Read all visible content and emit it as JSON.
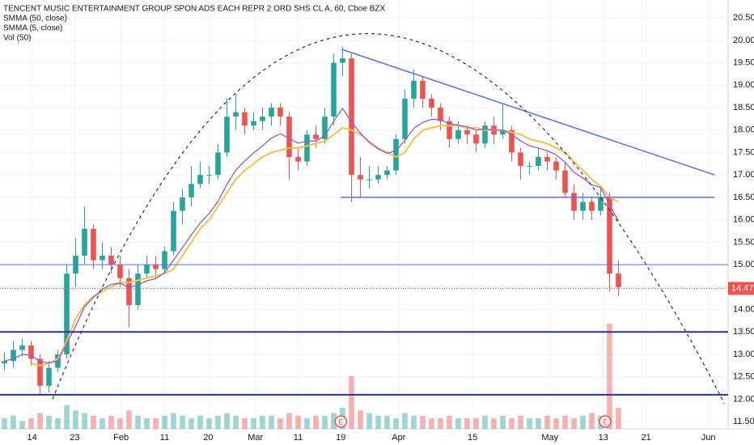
{
  "chart_data": {
    "type": "candlestick",
    "title": "TENCENT MUSIC ENTERTAINMENT GROUP SPON ADS EACH REPR 2 ORD SHS CL A, 60, Cboe BZX",
    "up_color": "#26a69a",
    "down_color": "#ef5350",
    "open": [
      12.8,
      12.85,
      13.1,
      13.2,
      12.9,
      12.3,
      12.7,
      13.0,
      14.8,
      15.2,
      15.8,
      15.1,
      15.2,
      15.0,
      14.7,
      14.1,
      14.8,
      15.0,
      14.9,
      15.3,
      16.2,
      16.5,
      16.8,
      17.0,
      17.0,
      17.5,
      18.3,
      18.4,
      18.1,
      18.2,
      18.3,
      18.5,
      18.3,
      17.4,
      17.3,
      17.9,
      17.8,
      18.3,
      19.5,
      19.6,
      17.0,
      16.9,
      16.9,
      17.0,
      17.1,
      17.8,
      18.7,
      19.1,
      18.7,
      18.5,
      18.2,
      17.8,
      18.0,
      17.9,
      17.7,
      18.1,
      17.9,
      18.0,
      17.5,
      17.2,
      17.2,
      17.4,
      17.3,
      17.1,
      16.6,
      16.2,
      16.4,
      16.2,
      16.5,
      14.8
    ],
    "high": [
      13.05,
      13.3,
      13.35,
      13.3,
      13.0,
      12.85,
      13.1,
      15.0,
      15.6,
      16.3,
      15.9,
      15.5,
      15.4,
      15.2,
      14.9,
      15.0,
      15.2,
      15.2,
      15.4,
      16.4,
      16.7,
      17.2,
      17.3,
      17.2,
      17.7,
      18.7,
      18.8,
      18.5,
      18.4,
      18.5,
      18.6,
      18.6,
      18.4,
      17.6,
      18.0,
      18.1,
      18.5,
      19.7,
      19.85,
      19.7,
      17.4,
      17.2,
      17.2,
      17.2,
      17.9,
      18.9,
      19.35,
      19.2,
      18.8,
      18.6,
      18.3,
      18.2,
      18.1,
      18.0,
      18.2,
      18.3,
      18.6,
      18.1,
      17.6,
      17.3,
      17.6,
      17.5,
      17.4,
      17.3,
      16.8,
      16.6,
      16.5,
      16.7,
      16.6,
      15.1
    ],
    "low": [
      12.65,
      12.7,
      12.95,
      12.75,
      12.1,
      12.15,
      12.6,
      12.9,
      14.5,
      15.0,
      14.9,
      14.9,
      14.8,
      14.5,
      13.6,
      14.0,
      14.7,
      14.7,
      14.8,
      15.2,
      15.9,
      16.3,
      16.7,
      16.8,
      16.9,
      17.4,
      18.0,
      17.9,
      18.0,
      18.0,
      18.1,
      18.1,
      16.9,
      17.1,
      17.2,
      17.6,
      17.7,
      18.1,
      19.2,
      16.4,
      16.5,
      16.7,
      16.8,
      16.9,
      17.0,
      17.7,
      18.5,
      18.5,
      18.3,
      18.0,
      17.6,
      17.7,
      17.7,
      17.5,
      17.6,
      17.7,
      17.8,
      17.3,
      16.9,
      17.0,
      17.1,
      17.1,
      16.9,
      16.5,
      16.0,
      16.0,
      16.0,
      16.1,
      14.4,
      14.3
    ],
    "close": [
      12.85,
      13.1,
      13.2,
      12.9,
      12.3,
      12.7,
      13.0,
      14.8,
      15.2,
      15.8,
      15.1,
      15.2,
      15.0,
      14.7,
      14.1,
      14.8,
      15.0,
      14.9,
      15.3,
      16.2,
      16.5,
      16.8,
      17.0,
      17.0,
      17.5,
      18.3,
      18.4,
      18.1,
      18.2,
      18.3,
      18.5,
      18.3,
      17.4,
      17.3,
      17.9,
      17.8,
      18.3,
      19.5,
      19.6,
      17.0,
      16.9,
      16.9,
      17.0,
      17.1,
      17.8,
      18.7,
      19.1,
      18.7,
      18.5,
      18.2,
      17.8,
      18.0,
      17.9,
      17.7,
      18.1,
      17.9,
      18.0,
      17.5,
      17.2,
      17.2,
      17.4,
      17.3,
      17.1,
      16.6,
      16.2,
      16.4,
      16.2,
      16.5,
      14.8,
      14.5
    ],
    "series": [
      {
        "name": "SMMA (50, close)",
        "color": "#f7c04a",
        "values": [
          null,
          null,
          null,
          12.8,
          12.75,
          12.8,
          12.9,
          13.3,
          13.8,
          14.1,
          14.3,
          14.4,
          14.5,
          14.6,
          14.6,
          14.65,
          14.7,
          14.75,
          14.8,
          14.9,
          15.2,
          15.5,
          15.8,
          16.0,
          16.3,
          16.6,
          16.9,
          17.1,
          17.25,
          17.4,
          17.5,
          17.55,
          17.6,
          17.6,
          17.65,
          17.7,
          17.75,
          17.9,
          18.05,
          18.0,
          17.9,
          17.75,
          17.6,
          17.5,
          17.4,
          17.5,
          17.8,
          18.0,
          18.05,
          18.1,
          18.1,
          18.1,
          18.05,
          18.05,
          18.0,
          18.0,
          18.0,
          17.95,
          17.9,
          17.8,
          17.75,
          17.7,
          17.6,
          17.5,
          17.3,
          17.1,
          16.9,
          16.75,
          16.5,
          16.4
        ]
      },
      {
        "name": "SMMA (5, close)",
        "color": "#8e5bd6",
        "values": [
          12.85,
          12.9,
          13.0,
          12.98,
          12.84,
          12.81,
          12.85,
          13.24,
          13.63,
          14.06,
          14.27,
          14.45,
          14.56,
          14.59,
          14.49,
          14.55,
          14.64,
          14.69,
          14.82,
          15.1,
          15.38,
          15.66,
          15.93,
          16.14,
          16.41,
          16.79,
          17.11,
          17.31,
          17.49,
          17.65,
          17.82,
          17.92,
          17.81,
          17.71,
          17.75,
          17.76,
          17.87,
          18.2,
          18.48,
          18.18,
          17.93,
          17.72,
          17.58,
          17.48,
          17.54,
          17.77,
          18.04,
          18.17,
          18.24,
          18.23,
          18.14,
          18.11,
          18.07,
          18.0,
          18.02,
          18.0,
          18.0,
          17.9,
          17.76,
          17.65,
          17.6,
          17.54,
          17.45,
          17.28,
          17.06,
          16.93,
          16.78,
          16.72,
          16.34,
          15.97
        ]
      }
    ],
    "volume": {
      "name": "Vol (50)",
      "vlim": [
        0,
        40
      ],
      "values": [
        4,
        5,
        3,
        4,
        6,
        5,
        4,
        9,
        7,
        6,
        5,
        4,
        5,
        4,
        7,
        5,
        4,
        4,
        5,
        6,
        5,
        4,
        5,
        4,
        5,
        6,
        5,
        4,
        4,
        5,
        5,
        4,
        6,
        5,
        4,
        5,
        5,
        6,
        8,
        20,
        7,
        6,
        5,
        5,
        4,
        6,
        5,
        5,
        4,
        4,
        5,
        4,
        4,
        4,
        5,
        4,
        5,
        4,
        5,
        4,
        4,
        5,
        4,
        5,
        4,
        5,
        6,
        5,
        40,
        8
      ]
    },
    "xlim": [
      -0.5,
      81.32
    ],
    "xticks": [
      {
        "value": 3.1,
        "label": "14"
      },
      {
        "value": 7.9,
        "label": "23"
      },
      {
        "value": 13.1,
        "label": "Feb"
      },
      {
        "value": 18.0,
        "label": "11"
      },
      {
        "value": 22.9,
        "label": "20"
      },
      {
        "value": 28.2,
        "label": "Mar"
      },
      {
        "value": 33.0,
        "label": "11"
      },
      {
        "value": 37.8,
        "label": "19"
      },
      {
        "value": 44.3,
        "label": "Apr"
      },
      {
        "value": 52.6,
        "label": "15"
      },
      {
        "value": 61.3,
        "label": "May"
      },
      {
        "value": 67.3,
        "label": "13"
      },
      {
        "value": 72.1,
        "label": "21"
      },
      {
        "value": 79.1,
        "label": "Jun"
      }
    ],
    "ylim": [
      11.34,
      20.9
    ],
    "yticks": [
      {
        "value": 11.5,
        "label": "11.50"
      },
      {
        "value": 12,
        "label": "12.00"
      },
      {
        "value": 12.5,
        "label": "12.50"
      },
      {
        "value": 13,
        "label": "13.00"
      },
      {
        "value": 13.5,
        "label": "13.50"
      },
      {
        "value": 14,
        "label": "14.00"
      },
      {
        "value": 14.5,
        "label": "14.50"
      },
      {
        "value": 15,
        "label": "15.00"
      },
      {
        "value": 15.5,
        "label": "15.50"
      },
      {
        "value": 16,
        "label": "16.00"
      },
      {
        "value": 16.5,
        "label": "16.50"
      },
      {
        "value": 17,
        "label": "17.00"
      },
      {
        "value": 17.5,
        "label": "17.50"
      },
      {
        "value": 18,
        "label": "18.00"
      },
      {
        "value": 18.5,
        "label": "18.50"
      },
      {
        "value": 19,
        "label": "19.00"
      },
      {
        "value": 19.5,
        "label": "19.50"
      },
      {
        "value": 20,
        "label": "20.00"
      },
      {
        "value": 20.5,
        "label": "20.50"
      }
    ],
    "grid": true,
    "last_price": 14.47,
    "last_price_color": "#ef5350",
    "levels": [
      {
        "y": 15,
        "color": "#5b6ee8",
        "width": 1
      },
      {
        "y": 16.5,
        "x": [
          37.8,
          79.8
        ],
        "color": "#5b6ee8",
        "width": 1.5
      },
      {
        "y": 13.5,
        "color": "#2b2fa6",
        "width": 2
      },
      {
        "y": 12.1,
        "color": "#2b2fa6",
        "width": 2
      }
    ],
    "trendline": {
      "x": [
        37.9,
        79.8
      ],
      "y": [
        19.8,
        17.0
      ],
      "color": "#5b6ee8"
    },
    "arc": {
      "x": [
        5.4,
        40.9,
        80.9
      ],
      "y": [
        12.0,
        20.15,
        11.9
      ]
    },
    "earnings": {
      "label": "E",
      "x": [
        37.8,
        67.5
      ]
    }
  }
}
